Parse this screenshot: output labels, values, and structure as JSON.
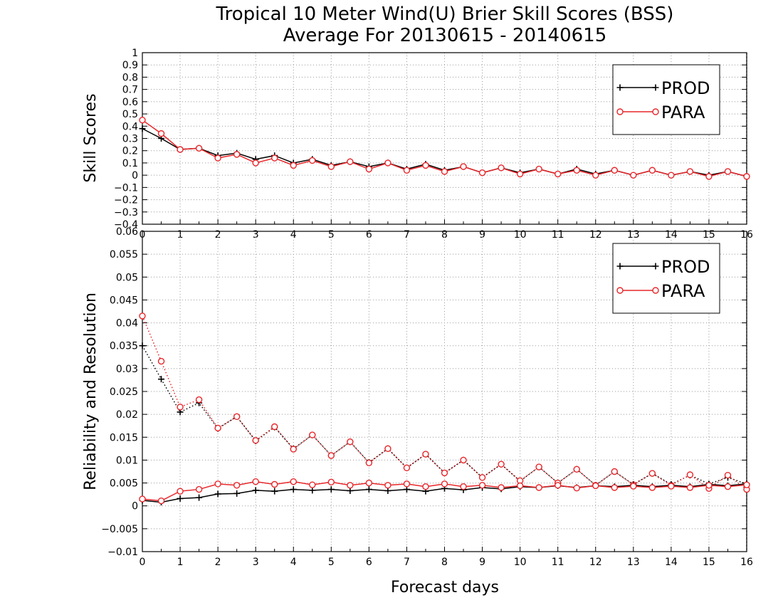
{
  "figure": {
    "title": "Tropical 10 Meter Wind(U) Brier Skill Scores (BSS)",
    "subtitle": "Average For 20130615 - 20140615",
    "xlabel": "Forecast days"
  },
  "colors": {
    "prod": "#000000",
    "para": "#e8262a",
    "grid": "#9a9a9a"
  },
  "chart_data": [
    {
      "type": "line",
      "name": "skill-scores",
      "ylabel": "Skill Scores",
      "xlim": [
        0,
        16
      ],
      "ylim": [
        -0.4,
        1
      ],
      "grid": true,
      "legend_position": "top-right",
      "x_ticks": [
        "0",
        "1",
        "2",
        "3",
        "4",
        "5",
        "6",
        "7",
        "8",
        "9",
        "10",
        "11",
        "12",
        "13",
        "14",
        "15",
        "16"
      ],
      "y_ticks": [
        "-0.4",
        "-0.3",
        "-0.2",
        "-0.1",
        "0",
        "0.1",
        "0.2",
        "0.3",
        "0.4",
        "0.5",
        "0.6",
        "0.7",
        "0.8",
        "0.9",
        "1"
      ],
      "x": [
        0,
        0.5,
        1,
        1.5,
        2,
        2.5,
        3,
        3.5,
        4,
        4.5,
        5,
        5.5,
        6,
        6.5,
        7,
        7.5,
        8,
        8.5,
        9,
        9.5,
        10,
        10.5,
        11,
        11.5,
        12,
        12.5,
        13,
        13.5,
        14,
        14.5,
        15,
        15.5,
        16
      ],
      "series": [
        {
          "name": "PROD",
          "marker": "plus",
          "style": "solid",
          "values": [
            0.38,
            0.3,
            0.21,
            0.22,
            0.16,
            0.18,
            0.13,
            0.16,
            0.1,
            0.13,
            0.08,
            0.11,
            0.07,
            0.1,
            0.05,
            0.09,
            0.04,
            0.07,
            0.02,
            0.06,
            0.02,
            0.05,
            0.01,
            0.05,
            0.01,
            0.04,
            0.0,
            0.04,
            0.0,
            0.03,
            0.0,
            0.03,
            -0.01
          ]
        },
        {
          "name": "PARA",
          "marker": "circle",
          "style": "solid",
          "values": [
            0.45,
            0.34,
            0.21,
            0.22,
            0.14,
            0.17,
            0.1,
            0.14,
            0.08,
            0.12,
            0.07,
            0.11,
            0.05,
            0.1,
            0.04,
            0.08,
            0.03,
            0.07,
            0.02,
            0.06,
            0.01,
            0.05,
            0.01,
            0.04,
            0.0,
            0.04,
            0.0,
            0.04,
            0.0,
            0.03,
            -0.01,
            0.03,
            -0.01
          ]
        }
      ]
    },
    {
      "type": "line",
      "name": "reliability-resolution",
      "ylabel": "Reliability and Resolution",
      "xlim": [
        0,
        16
      ],
      "ylim": [
        -0.01,
        0.06
      ],
      "grid": true,
      "legend_position": "top-right",
      "x_ticks": [
        "0",
        "1",
        "2",
        "3",
        "4",
        "5",
        "6",
        "7",
        "8",
        "9",
        "10",
        "11",
        "12",
        "13",
        "14",
        "15",
        "16"
      ],
      "y_ticks": [
        "-0.01",
        "-0.005",
        "0",
        "0.005",
        "0.01",
        "0.015",
        "0.02",
        "0.025",
        "0.03",
        "0.035",
        "0.04",
        "0.045",
        "0.05",
        "0.055",
        "0.06"
      ],
      "x": [
        0,
        0.5,
        1,
        1.5,
        2,
        2.5,
        3,
        3.5,
        4,
        4.5,
        5,
        5.5,
        6,
        6.5,
        7,
        7.5,
        8,
        8.5,
        9,
        9.5,
        10,
        10.5,
        11,
        11.5,
        12,
        12.5,
        13,
        13.5,
        14,
        14.5,
        15,
        15.5,
        16
      ],
      "series": [
        {
          "name": "PROD",
          "marker": "plus",
          "style": "dotted",
          "values": [
            0.035,
            0.0277,
            0.0205,
            0.0225,
            0.0169,
            0.0195,
            0.0142,
            0.0172,
            0.0125,
            0.0155,
            0.011,
            0.014,
            0.0095,
            0.0125,
            0.0083,
            0.0113,
            0.0072,
            0.01,
            0.0062,
            0.0091,
            0.0054,
            0.0085,
            0.005,
            0.008,
            0.0045,
            0.0075,
            0.0047,
            0.0071,
            0.0047,
            0.0067,
            0.0048,
            0.0062,
            0.0048
          ]
        },
        {
          "name": "PARA",
          "marker": "circle",
          "style": "dotted",
          "values": [
            0.0415,
            0.0316,
            0.0216,
            0.0232,
            0.017,
            0.0195,
            0.0143,
            0.0173,
            0.0124,
            0.0155,
            0.011,
            0.014,
            0.0094,
            0.0125,
            0.0083,
            0.0113,
            0.0072,
            0.01,
            0.0062,
            0.0091,
            0.0055,
            0.0085,
            0.005,
            0.008,
            0.0045,
            0.0075,
            0.0046,
            0.0071,
            0.0045,
            0.0068,
            0.0038,
            0.0067,
            0.0036
          ]
        },
        {
          "name": "PROD",
          "marker": "plus",
          "style": "solid",
          "values": [
            0.0012,
            0.0008,
            0.0016,
            0.0018,
            0.0026,
            0.0027,
            0.0034,
            0.0032,
            0.0036,
            0.0034,
            0.0036,
            0.0033,
            0.0036,
            0.0033,
            0.0036,
            0.0032,
            0.0038,
            0.0035,
            0.004,
            0.0037,
            0.0042,
            0.004,
            0.0044,
            0.004,
            0.0044,
            0.0042,
            0.0045,
            0.0042,
            0.0045,
            0.0042,
            0.0047,
            0.0044,
            0.0048
          ]
        },
        {
          "name": "PARA",
          "marker": "circle",
          "style": "solid",
          "values": [
            0.0015,
            0.0011,
            0.0032,
            0.0036,
            0.0048,
            0.0045,
            0.0053,
            0.0047,
            0.0053,
            0.0046,
            0.0052,
            0.0045,
            0.005,
            0.0045,
            0.0048,
            0.0042,
            0.0048,
            0.0042,
            0.0045,
            0.004,
            0.0044,
            0.004,
            0.0045,
            0.0039,
            0.0044,
            0.004,
            0.0043,
            0.004,
            0.0043,
            0.004,
            0.0045,
            0.0042,
            0.0046
          ]
        }
      ]
    }
  ]
}
